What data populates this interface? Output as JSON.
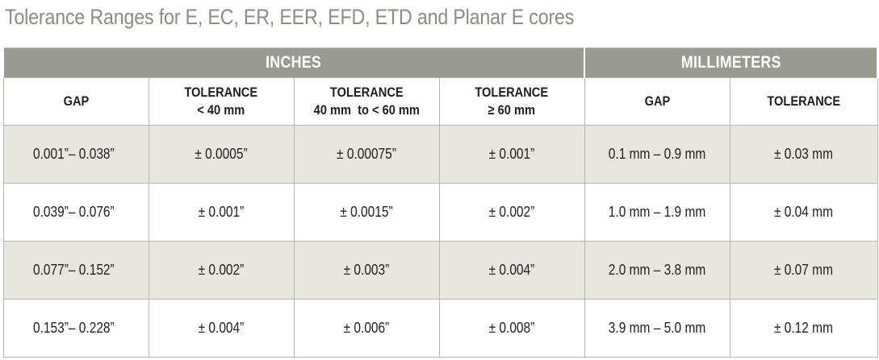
{
  "title": "Tolerance Ranges for E, EC, ER, EER, EFD, ETD and Planar E cores",
  "units": {
    "inches": "INCHES",
    "millimeters": "MILLIMETERS"
  },
  "columns": {
    "gap_in": "GAP",
    "tol_lt40_line1": "TOLERANCE",
    "tol_lt40_line2": "< 40 mm",
    "tol_40_60_line1": "TOLERANCE",
    "tol_40_60_line2": "40 mm  to < 60 mm",
    "tol_ge60_line1": "TOLERANCE",
    "tol_ge60_line2": "≥ 60 mm",
    "gap_mm": "GAP",
    "tol_mm": "TOLERANCE"
  },
  "rows": [
    {
      "gap_in": "0.001”– 0.038”",
      "tol_lt40": "± 0.0005”",
      "tol_40_60": "± 0.00075”",
      "tol_ge60": "± 0.001”",
      "gap_mm": "0.1 mm – 0.9 mm",
      "tol_mm": "± 0.03 mm"
    },
    {
      "gap_in": "0.039”– 0.076”",
      "tol_lt40": "± 0.001”",
      "tol_40_60": "± 0.0015”",
      "tol_ge60": "± 0.002”",
      "gap_mm": "1.0 mm – 1.9 mm",
      "tol_mm": "± 0.04 mm"
    },
    {
      "gap_in": "0.077”– 0.152”",
      "tol_lt40": "± 0.002”",
      "tol_40_60": "± 0.003”",
      "tol_ge60": "± 0.004”",
      "gap_mm": "2.0 mm – 3.8 mm",
      "tol_mm": "± 0.07 mm"
    },
    {
      "gap_in": "0.153”– 0.228”",
      "tol_lt40": "± 0.004”",
      "tol_40_60": "± 0.006”",
      "tol_ge60": "± 0.008”",
      "gap_mm": "3.9 mm – 5.0 mm",
      "tol_mm": "± 0.12 mm"
    }
  ]
}
